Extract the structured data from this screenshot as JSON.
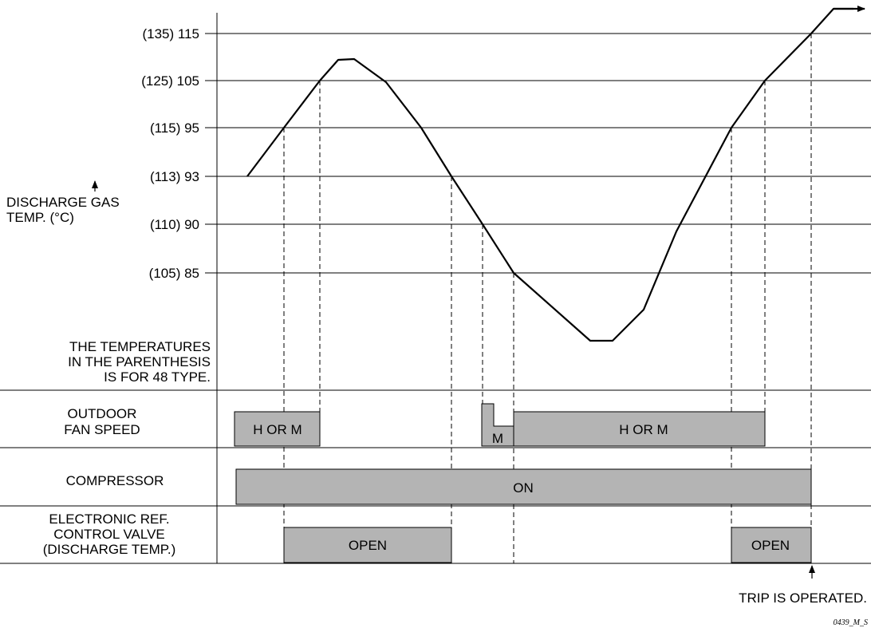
{
  "axis": {
    "arrow_label_line1": "DISCHARGE GAS",
    "arrow_label_line2": "TEMP. (°C)",
    "ticks": [
      {
        "label": "(135) 115",
        "value": 115
      },
      {
        "label": "(125) 105",
        "value": 105
      },
      {
        "label": "(115) 95",
        "value": 95
      },
      {
        "label": "(113) 93",
        "value": 93
      },
      {
        "label": "(110) 90",
        "value": 90
      },
      {
        "label": "(105) 85",
        "value": 85
      }
    ]
  },
  "note": {
    "line1": "THE TEMPERATURES",
    "line2": "IN THE PARENTHESIS",
    "line3": "IS FOR 48 TYPE."
  },
  "rows": {
    "fan": {
      "line1": "OUTDOOR",
      "line2": "FAN SPEED",
      "bar1": "H OR M",
      "bar2": "M",
      "bar3": "H OR M"
    },
    "compressor": {
      "label": "COMPRESSOR",
      "bar": "ON"
    },
    "valve": {
      "line1": "ELECTRONIC REF.",
      "line2": "CONTROL VALVE",
      "line3": "(DISCHARGE TEMP.)",
      "bar1": "OPEN",
      "bar2": "OPEN"
    }
  },
  "trip_label": "TRIP IS OPERATED.",
  "figure_code": "0439_M_S",
  "colors": {
    "bar_fill": "#b4b4b4",
    "line": "#000000"
  }
}
